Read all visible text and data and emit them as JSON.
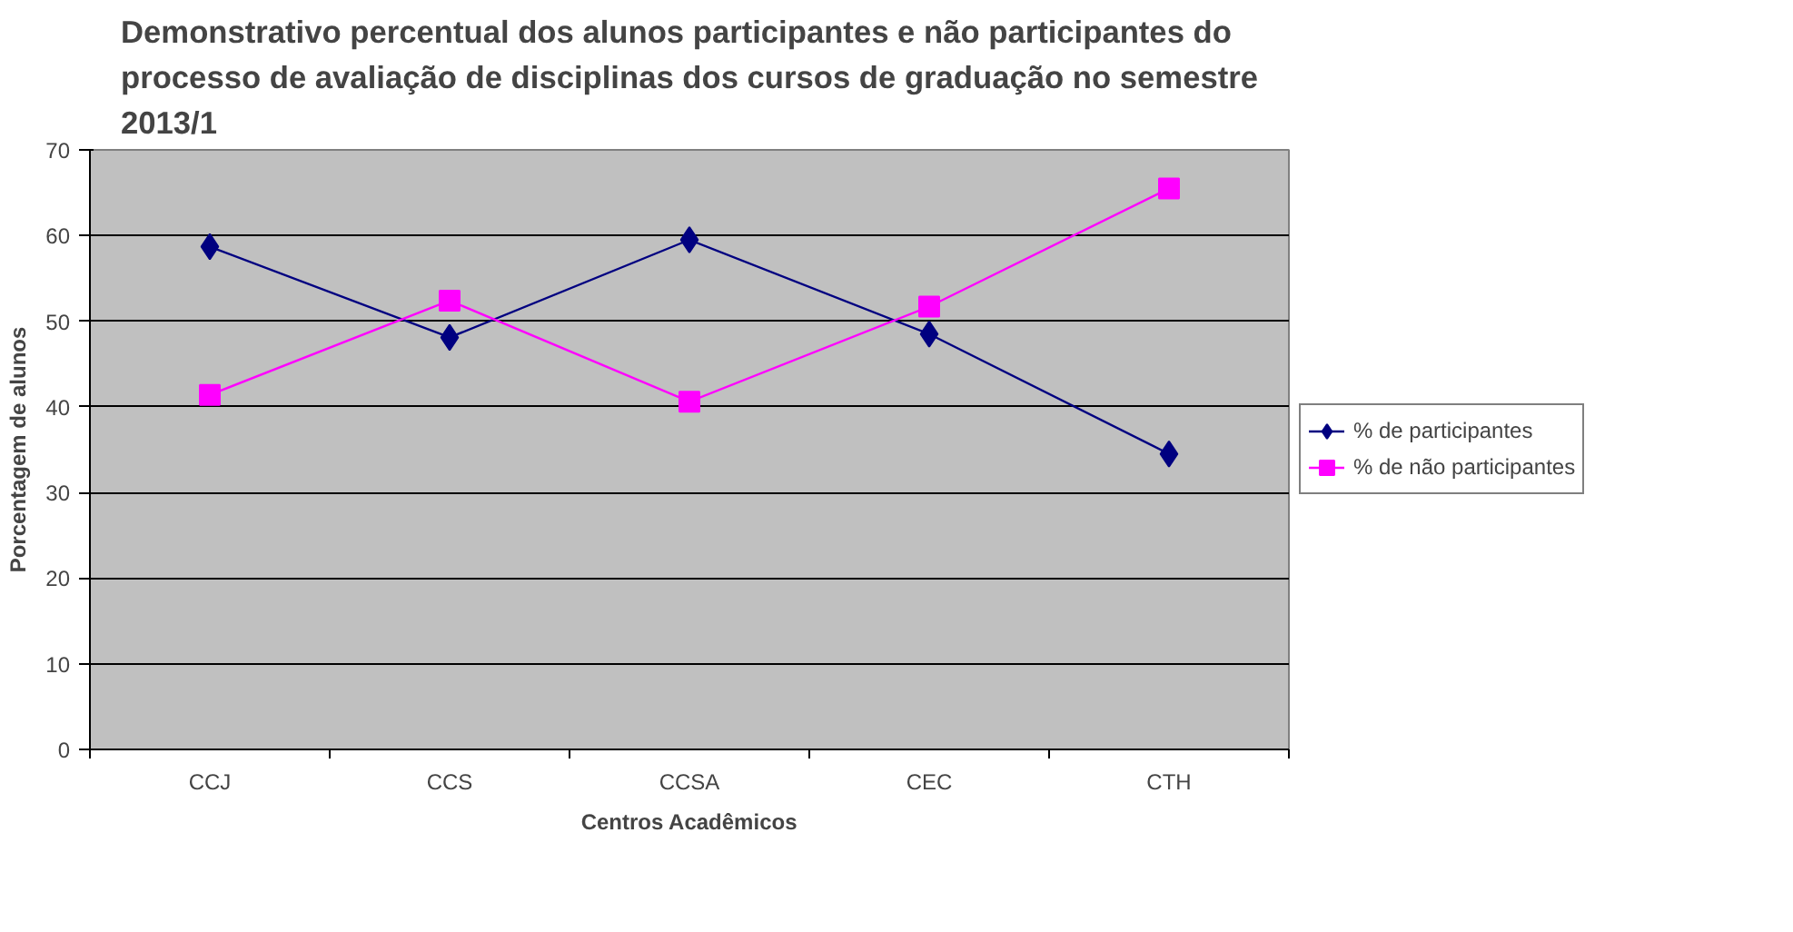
{
  "chart_data": {
    "type": "line",
    "title": "Demonstrativo percentual dos alunos participantes e não participantes do processo de avaliação de disciplinas dos cursos de graduação no semestre 2013/1",
    "xlabel": "Centros Acadêmicos",
    "ylabel": "Porcentagem de alunos",
    "categories": [
      "CCJ",
      "CCS",
      "CCSA",
      "CEC",
      "CTH"
    ],
    "series": [
      {
        "name": "% de participantes",
        "color": "#000080",
        "marker": "diamond",
        "values": [
          58.7,
          48.1,
          59.5,
          48.5,
          34.5
        ]
      },
      {
        "name": "% de não participantes",
        "color": "#ff00ff",
        "marker": "square",
        "values": [
          41.4,
          52.4,
          40.6,
          51.7,
          65.5
        ]
      }
    ],
    "ylim": [
      0,
      70
    ],
    "yticks": [
      0,
      10,
      20,
      30,
      40,
      50,
      60,
      70
    ],
    "grid": "y",
    "legend": "right"
  }
}
